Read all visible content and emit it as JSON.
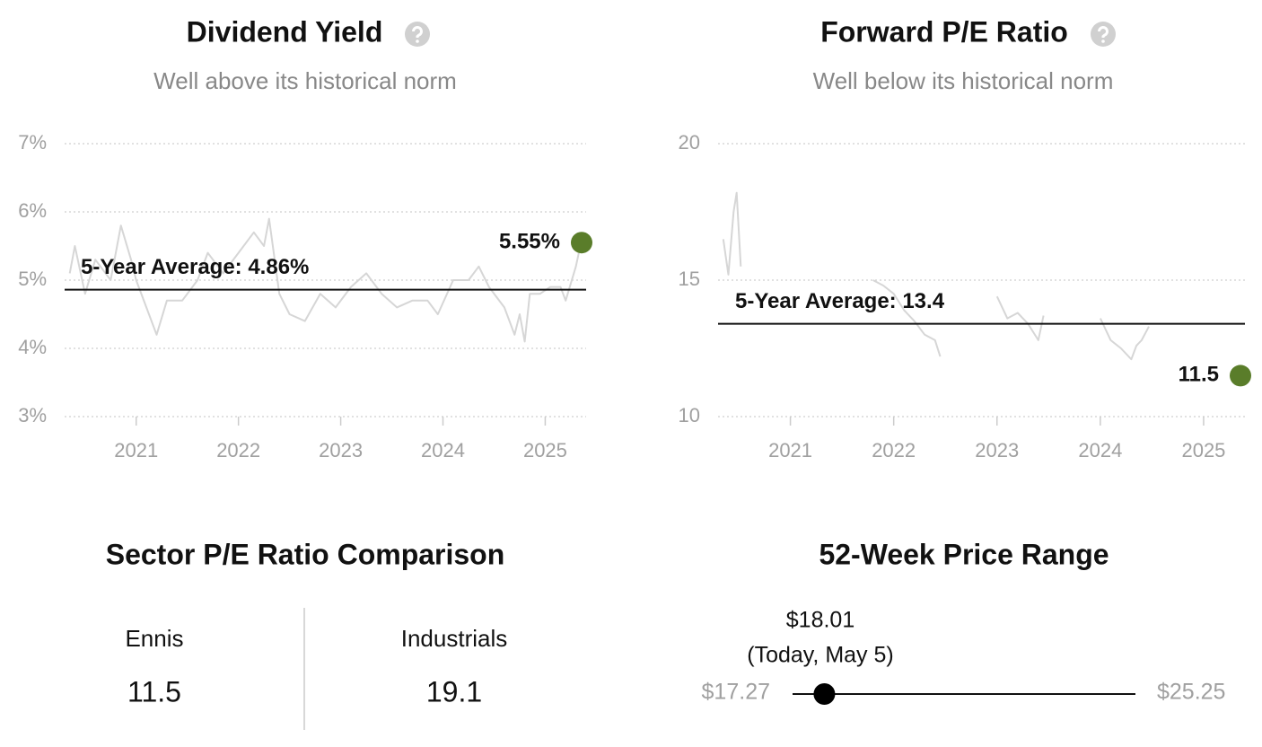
{
  "chart_data": [
    {
      "type": "line",
      "title": "Dividend Yield",
      "subtitle": "Well above its historical norm",
      "x": [
        2020.35,
        2020.4,
        2020.5,
        2020.6,
        2020.75,
        2020.85,
        2020.95,
        2021.0,
        2021.1,
        2021.2,
        2021.3,
        2021.45,
        2021.6,
        2021.7,
        2021.85,
        2022.0,
        2022.15,
        2022.25,
        2022.3,
        2022.4,
        2022.5,
        2022.65,
        2022.8,
        2022.95,
        2023.1,
        2023.25,
        2023.4,
        2023.55,
        2023.7,
        2023.85,
        2023.95,
        2024.1,
        2024.25,
        2024.35,
        2024.45,
        2024.6,
        2024.7,
        2024.75,
        2024.8,
        2024.85,
        2024.95,
        2025.05,
        2025.15,
        2025.2,
        2025.3,
        2025.35
      ],
      "values": [
        5.1,
        5.5,
        4.8,
        5.3,
        5.0,
        5.8,
        5.3,
        5.0,
        4.6,
        4.2,
        4.7,
        4.7,
        5.0,
        5.4,
        5.1,
        5.4,
        5.7,
        5.5,
        5.9,
        4.8,
        4.5,
        4.4,
        4.8,
        4.6,
        4.9,
        5.1,
        4.8,
        4.6,
        4.7,
        4.7,
        4.5,
        5.0,
        5.0,
        5.2,
        4.9,
        4.6,
        4.2,
        4.5,
        4.1,
        4.8,
        4.8,
        4.9,
        4.9,
        4.7,
        5.2,
        5.55
      ],
      "color": "#d6d6d6",
      "xlim": [
        2020.3,
        2025.4
      ],
      "xticks": [
        2021,
        2022,
        2023,
        2024,
        2025
      ],
      "ylim": [
        3,
        7
      ],
      "yticks": [
        {
          "value": 3,
          "label": "3%"
        },
        {
          "value": 4,
          "label": "4%"
        },
        {
          "value": 5,
          "label": "5%"
        },
        {
          "value": 6,
          "label": "6%"
        },
        {
          "value": 7,
          "label": "7%"
        }
      ],
      "grid": true,
      "average": {
        "value": 4.86,
        "label": "5-Year Average: 4.86%"
      },
      "current": {
        "value": 5.55,
        "label": "5.55%",
        "color": "#5a7d2a"
      }
    },
    {
      "type": "line",
      "title": "Forward P/E Ratio",
      "subtitle": "Well below its historical norm",
      "x": [
        2020.35,
        2020.4,
        2020.45,
        2020.48,
        2020.52,
        2021.2,
        2021.8,
        2021.9,
        2022.0,
        2022.1,
        2022.2,
        2022.3,
        2022.4,
        2022.45,
        2022.7,
        2023.0,
        2023.1,
        2023.2,
        2023.3,
        2023.4,
        2023.45,
        2023.7,
        2024.0,
        2024.1,
        2024.2,
        2024.3,
        2024.35,
        2024.4,
        2024.47
      ],
      "values": [
        16.5,
        15.2,
        17.5,
        18.2,
        15.5,
        null,
        15.0,
        14.8,
        14.5,
        13.9,
        13.5,
        13.0,
        12.8,
        12.2,
        null,
        14.4,
        13.6,
        13.8,
        13.4,
        12.8,
        13.7,
        null,
        13.6,
        12.8,
        12.5,
        12.1,
        12.6,
        12.8,
        13.3
      ],
      "color": "#d6d6d6",
      "xlim": [
        2020.3,
        2025.4
      ],
      "xticks": [
        2021,
        2022,
        2023,
        2024,
        2025
      ],
      "ylim": [
        10,
        20
      ],
      "yticks": [
        10,
        15,
        20
      ],
      "grid": true,
      "average": {
        "value": 13.4,
        "label": "5-Year Average: 13.4"
      },
      "current": {
        "value": 11.5,
        "label": "11.5",
        "color": "#5a7d2a"
      }
    }
  ],
  "sector_comparison": {
    "title": "Sector P/E Ratio Comparison",
    "items": [
      {
        "name": "Ennis",
        "value": 11.5
      },
      {
        "name": "Industrials",
        "value": 19.1
      }
    ]
  },
  "price_range": {
    "title": "52-Week Price Range",
    "low": {
      "value": 17.27,
      "label": "$17.27"
    },
    "high": {
      "value": 25.25,
      "label": "$25.25"
    },
    "current": {
      "value": 18.01,
      "label": "$18.01",
      "note": "(Today, May 5)"
    }
  }
}
